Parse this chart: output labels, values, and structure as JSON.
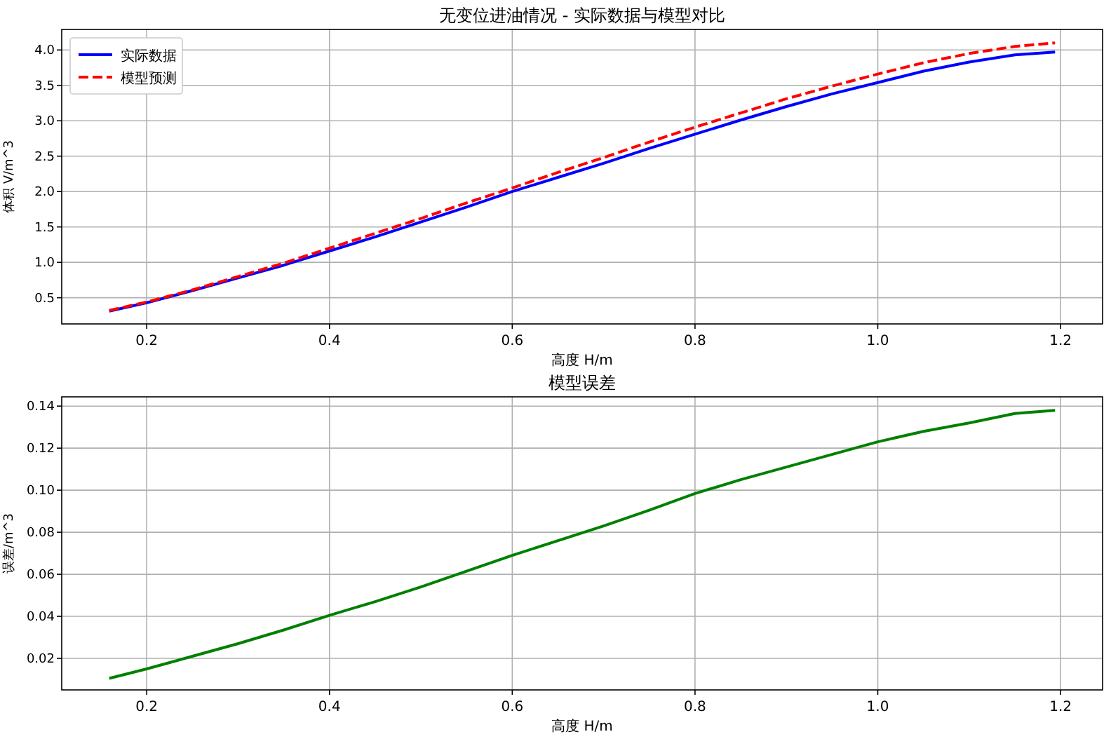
{
  "chart_data": [
    {
      "type": "line",
      "title": "无变位进油情况 - 实际数据与模型对比",
      "xlabel": "高度 H/m",
      "ylabel": "体积 V/m^3",
      "legend": "top left",
      "grid": true,
      "x": [
        0.159,
        0.2,
        0.25,
        0.3,
        0.35,
        0.4,
        0.45,
        0.5,
        0.55,
        0.6,
        0.65,
        0.7,
        0.75,
        0.8,
        0.85,
        0.9,
        0.95,
        1.0,
        1.05,
        1.1,
        1.15,
        1.194
      ],
      "xlim": [
        0.107,
        1.246
      ],
      "xticks": [
        0.2,
        0.4,
        0.6,
        0.8,
        {
          "value": 1,
          "label": "1.0"
        },
        1.2
      ],
      "ylim": [
        0.13,
        4.29
      ],
      "yticks": [
        0.5,
        {
          "value": 1,
          "label": "1.0"
        },
        1.5,
        {
          "value": 2,
          "label": "2.0"
        },
        2.5,
        {
          "value": 3,
          "label": "3.0"
        },
        3.5,
        {
          "value": 4,
          "label": "4.0"
        }
      ],
      "series": [
        {
          "name": "实际数据",
          "color": "#0000ff",
          "line_style": "solid",
          "values": [
            0.31,
            0.43,
            0.6,
            0.78,
            0.96,
            1.16,
            1.36,
            1.57,
            1.78,
            2.0,
            2.2,
            2.4,
            2.61,
            2.81,
            3.01,
            3.2,
            3.38,
            3.54,
            3.7,
            3.83,
            3.93,
            3.97
          ]
        },
        {
          "name": "模型预测",
          "color": "#ff0000",
          "line_style": "dashed",
          "values": [
            0.32,
            0.44,
            0.61,
            0.8,
            0.99,
            1.2,
            1.41,
            1.62,
            1.84,
            2.05,
            2.27,
            2.48,
            2.7,
            2.91,
            3.11,
            3.31,
            3.49,
            3.66,
            3.82,
            3.95,
            4.05,
            4.1
          ]
        }
      ]
    },
    {
      "type": "line",
      "title": "模型误差",
      "xlabel": "高度 H/m",
      "ylabel": "误差/m^3",
      "grid": true,
      "color": "#008000",
      "x": [
        0.159,
        0.2,
        0.25,
        0.3,
        0.35,
        0.4,
        0.45,
        0.5,
        0.55,
        0.6,
        0.65,
        0.7,
        0.75,
        0.8,
        0.85,
        0.9,
        0.95,
        1.0,
        1.05,
        1.1,
        1.15,
        1.194
      ],
      "xlim": [
        0.107,
        1.246
      ],
      "xticks": [
        0.2,
        0.4,
        0.6,
        0.8,
        {
          "value": 1,
          "label": "1.0"
        },
        1.2
      ],
      "ylim": [
        0.005,
        0.1444
      ],
      "yticks": [
        0.02,
        0.04,
        0.06,
        0.08,
        {
          "value": 0.1,
          "label": "0.10"
        },
        0.12,
        0.14
      ],
      "values": [
        0.0105,
        0.015,
        0.021,
        0.027,
        0.0335,
        0.0405,
        0.047,
        0.054,
        0.0615,
        0.069,
        0.076,
        0.083,
        0.0905,
        0.0984,
        0.105,
        0.111,
        0.117,
        0.123,
        0.128,
        0.132,
        0.1365,
        0.138
      ]
    }
  ]
}
